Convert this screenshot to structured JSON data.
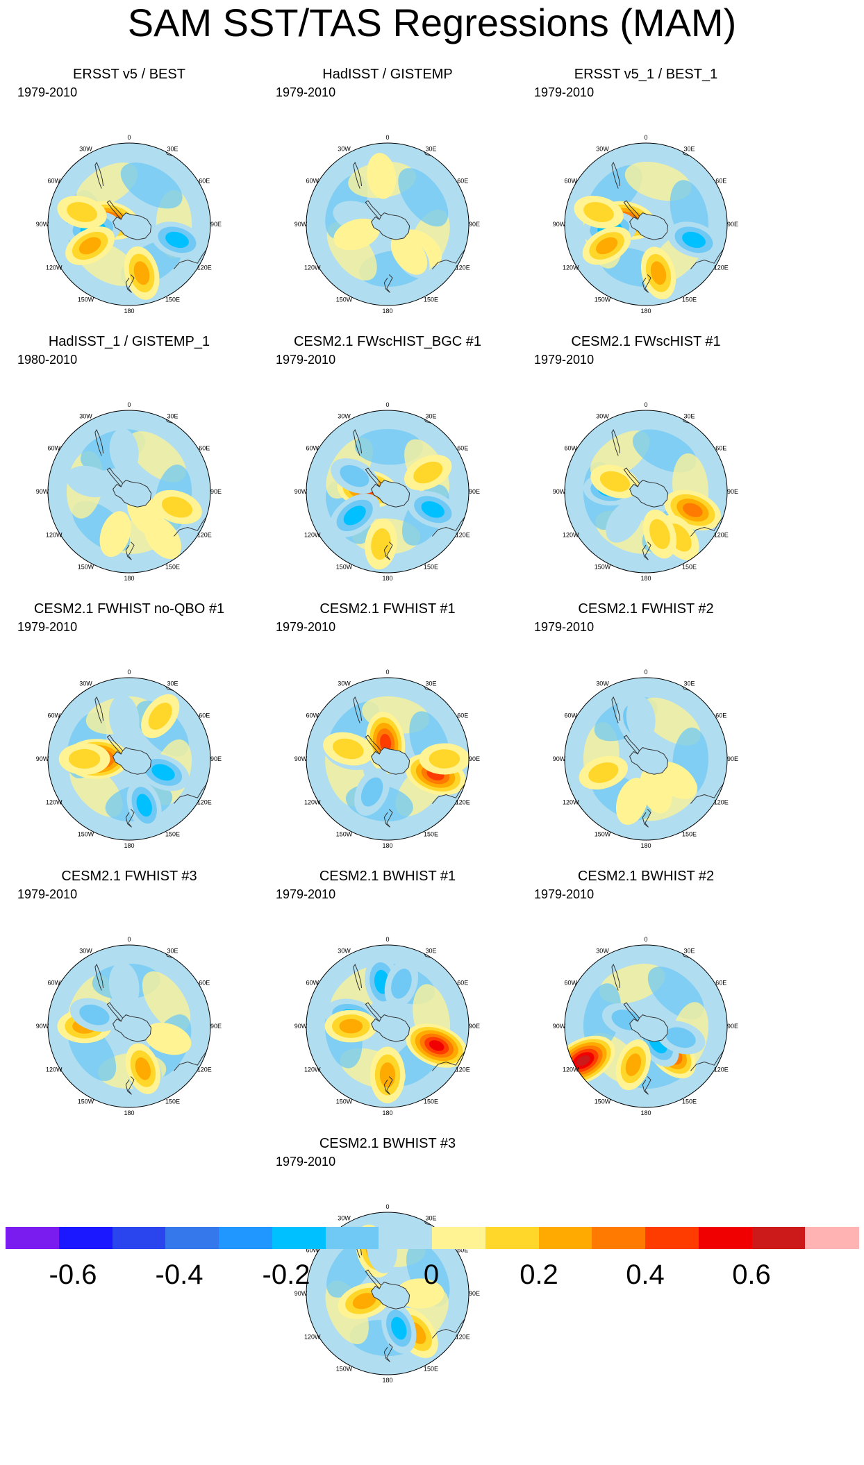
{
  "title": "SAM SST/TAS Regressions (MAM)",
  "lon_labels": [
    "0",
    "30E",
    "60E",
    "90E",
    "120E",
    "150E",
    "180",
    "150W",
    "120W",
    "90W",
    "60W",
    "30W"
  ],
  "panels": [
    {
      "title": "ERSST v5 / BEST",
      "period": "1979-2010",
      "anomalies": [
        [
          -0.3,
          0.62,
          0.3
        ],
        [
          0.45,
          0.25,
          -0.22
        ],
        [
          0.3,
          0.62,
          0.46
        ],
        [
          -0.35,
          0.45,
          -0.27
        ],
        [
          0.27,
          0.55,
          -0.33
        ],
        [
          0.2,
          0.6,
          0.79
        ]
      ]
    },
    {
      "title": "HadISST / GISTEMP",
      "period": "1979-2010",
      "anomalies": [
        [
          0.15,
          0.5,
          0.35
        ],
        [
          -0.12,
          0.4,
          -0.21
        ],
        [
          0.13,
          0.4,
          0.7
        ],
        [
          0.1,
          0.6,
          0.98
        ],
        [
          -0.12,
          0.5,
          0.4
        ],
        [
          0.12,
          0.45,
          -0.6
        ]
      ]
    },
    {
      "title": "ERSST v5_1 / BEST_1",
      "period": "1979-2010",
      "anomalies": [
        [
          -0.3,
          0.62,
          0.3
        ],
        [
          0.45,
          0.25,
          -0.22
        ],
        [
          0.28,
          0.62,
          0.46
        ],
        [
          -0.32,
          0.45,
          -0.27
        ],
        [
          0.25,
          0.55,
          -0.33
        ],
        [
          0.2,
          0.6,
          0.79
        ]
      ]
    },
    {
      "title": "HadISST_1 / GISTEMP_1",
      "period": "1980-2010",
      "anomalies": [
        [
          0.22,
          0.62,
          0.3
        ],
        [
          -0.15,
          0.5,
          -0.21
        ],
        [
          0.15,
          0.35,
          0.4
        ],
        [
          0.12,
          0.55,
          -0.45
        ],
        [
          -0.1,
          0.5,
          0.98
        ],
        [
          0.15,
          0.7,
          -0.6
        ]
      ]
    },
    {
      "title": "CESM2.1 FWscHIST_BGC #1",
      "period": "1979-2010",
      "anomalies": [
        [
          0.45,
          0.25,
          -0.23
        ],
        [
          -0.35,
          0.5,
          -0.35
        ],
        [
          -0.3,
          0.6,
          0.31
        ],
        [
          -0.2,
          0.45,
          0.82
        ],
        [
          0.2,
          0.55,
          -0.82
        ],
        [
          0.22,
          0.65,
          0.52
        ]
      ]
    },
    {
      "title": "CESM2.1 FWscHIST #1",
      "period": "1979-2010",
      "anomalies": [
        [
          0.42,
          0.62,
          0.31
        ],
        [
          0.22,
          0.7,
          -0.6
        ],
        [
          -0.25,
          0.45,
          0.76
        ],
        [
          0.2,
          0.55,
          0.45
        ],
        [
          -0.15,
          0.45,
          -0.4
        ],
        [
          0.2,
          0.4,
          -0.2
        ]
      ]
    },
    {
      "title": "CESM2.1 FWHIST no-QBO #1",
      "period": "1979-2010",
      "anomalies": [
        [
          0.55,
          0.4,
          -0.25
        ],
        [
          -0.3,
          0.45,
          0.31
        ],
        [
          -0.25,
          0.6,
          -0.55
        ],
        [
          0.22,
          0.55,
          0.75
        ],
        [
          -0.15,
          0.5,
          0.98
        ],
        [
          0.18,
          0.65,
          -0.9
        ]
      ]
    },
    {
      "title": "CESM2.1 FWHIST #1",
      "period": "1979-2010",
      "anomalies": [
        [
          0.5,
          0.62,
          0.3
        ],
        [
          -0.35,
          0.45,
          -0.22
        ],
        [
          0.5,
          0.2,
          0.98
        ],
        [
          -0.2,
          0.45,
          0.57
        ],
        [
          0.2,
          0.7,
          -0.75
        ],
        [
          0.22,
          0.5,
          0.79
        ]
      ]
    },
    {
      "title": "CESM2.1 FWHIST #2",
      "period": "1979-2010",
      "anomalies": [
        [
          0.2,
          0.55,
          -0.3
        ],
        [
          -0.2,
          0.5,
          0.95
        ],
        [
          0.15,
          0.45,
          0.35
        ],
        [
          0.15,
          0.4,
          -0.55
        ],
        [
          -0.1,
          0.5,
          0.98
        ],
        [
          0.15,
          0.55,
          0.55
        ]
      ]
    },
    {
      "title": "CESM2.1 FWHIST #3",
      "period": "1979-2010",
      "anomalies": [
        [
          0.3,
          0.55,
          -0.25
        ],
        [
          -0.2,
          0.45,
          0.8
        ],
        [
          -0.28,
          0.62,
          0.45
        ],
        [
          0.25,
          0.55,
          -0.55
        ],
        [
          -0.15,
          0.5,
          0.98
        ],
        [
          0.15,
          0.5,
          0.3
        ]
      ]
    },
    {
      "title": "CESM2.1 BWHIST #1",
      "period": "1979-2010",
      "anomalies": [
        [
          0.55,
          0.65,
          0.31
        ],
        [
          -0.35,
          0.45,
          0.79
        ],
        [
          0.35,
          0.6,
          -0.5
        ],
        [
          -0.3,
          0.55,
          0.98
        ],
        [
          0.25,
          0.45,
          -0.25
        ],
        [
          -0.2,
          0.55,
          -0.95
        ]
      ]
    },
    {
      "title": "CESM2.1 BWHIST #2",
      "period": "1979-2010",
      "anomalies": [
        [
          0.45,
          0.45,
          0.38
        ],
        [
          0.65,
          0.88,
          0.67
        ],
        [
          -0.3,
          0.25,
          0.4
        ],
        [
          -0.2,
          0.45,
          -0.7
        ],
        [
          0.25,
          0.5,
          0.55
        ],
        [
          -0.2,
          0.25,
          -0.2
        ]
      ]
    },
    {
      "title": "CESM2.1 BWHIST #3",
      "period": "1979-2010",
      "anomalies": [
        [
          0.35,
          0.6,
          0.4
        ],
        [
          0.3,
          0.3,
          -0.3
        ],
        [
          -0.25,
          0.45,
          -0.55
        ],
        [
          0.3,
          0.55,
          0.95
        ],
        [
          -0.15,
          0.55,
          0.98
        ],
        [
          0.15,
          0.4,
          0.25
        ]
      ]
    }
  ],
  "colorbar": {
    "colors": [
      "#7a1bf0",
      "#1b17ff",
      "#2a45ee",
      "#3578ec",
      "#2096ff",
      "#00c0ff",
      "#70c8f4",
      "#b0ddf0",
      "#fff394",
      "#ffd62a",
      "#ffaa00",
      "#ff7a00",
      "#ff3c00",
      "#f00000",
      "#cc1a1a",
      "#ffb3b3"
    ],
    "labels": [
      "-0.6",
      "-0.4",
      "-0.2",
      "0",
      "0.2",
      "0.4",
      "0.6"
    ]
  }
}
